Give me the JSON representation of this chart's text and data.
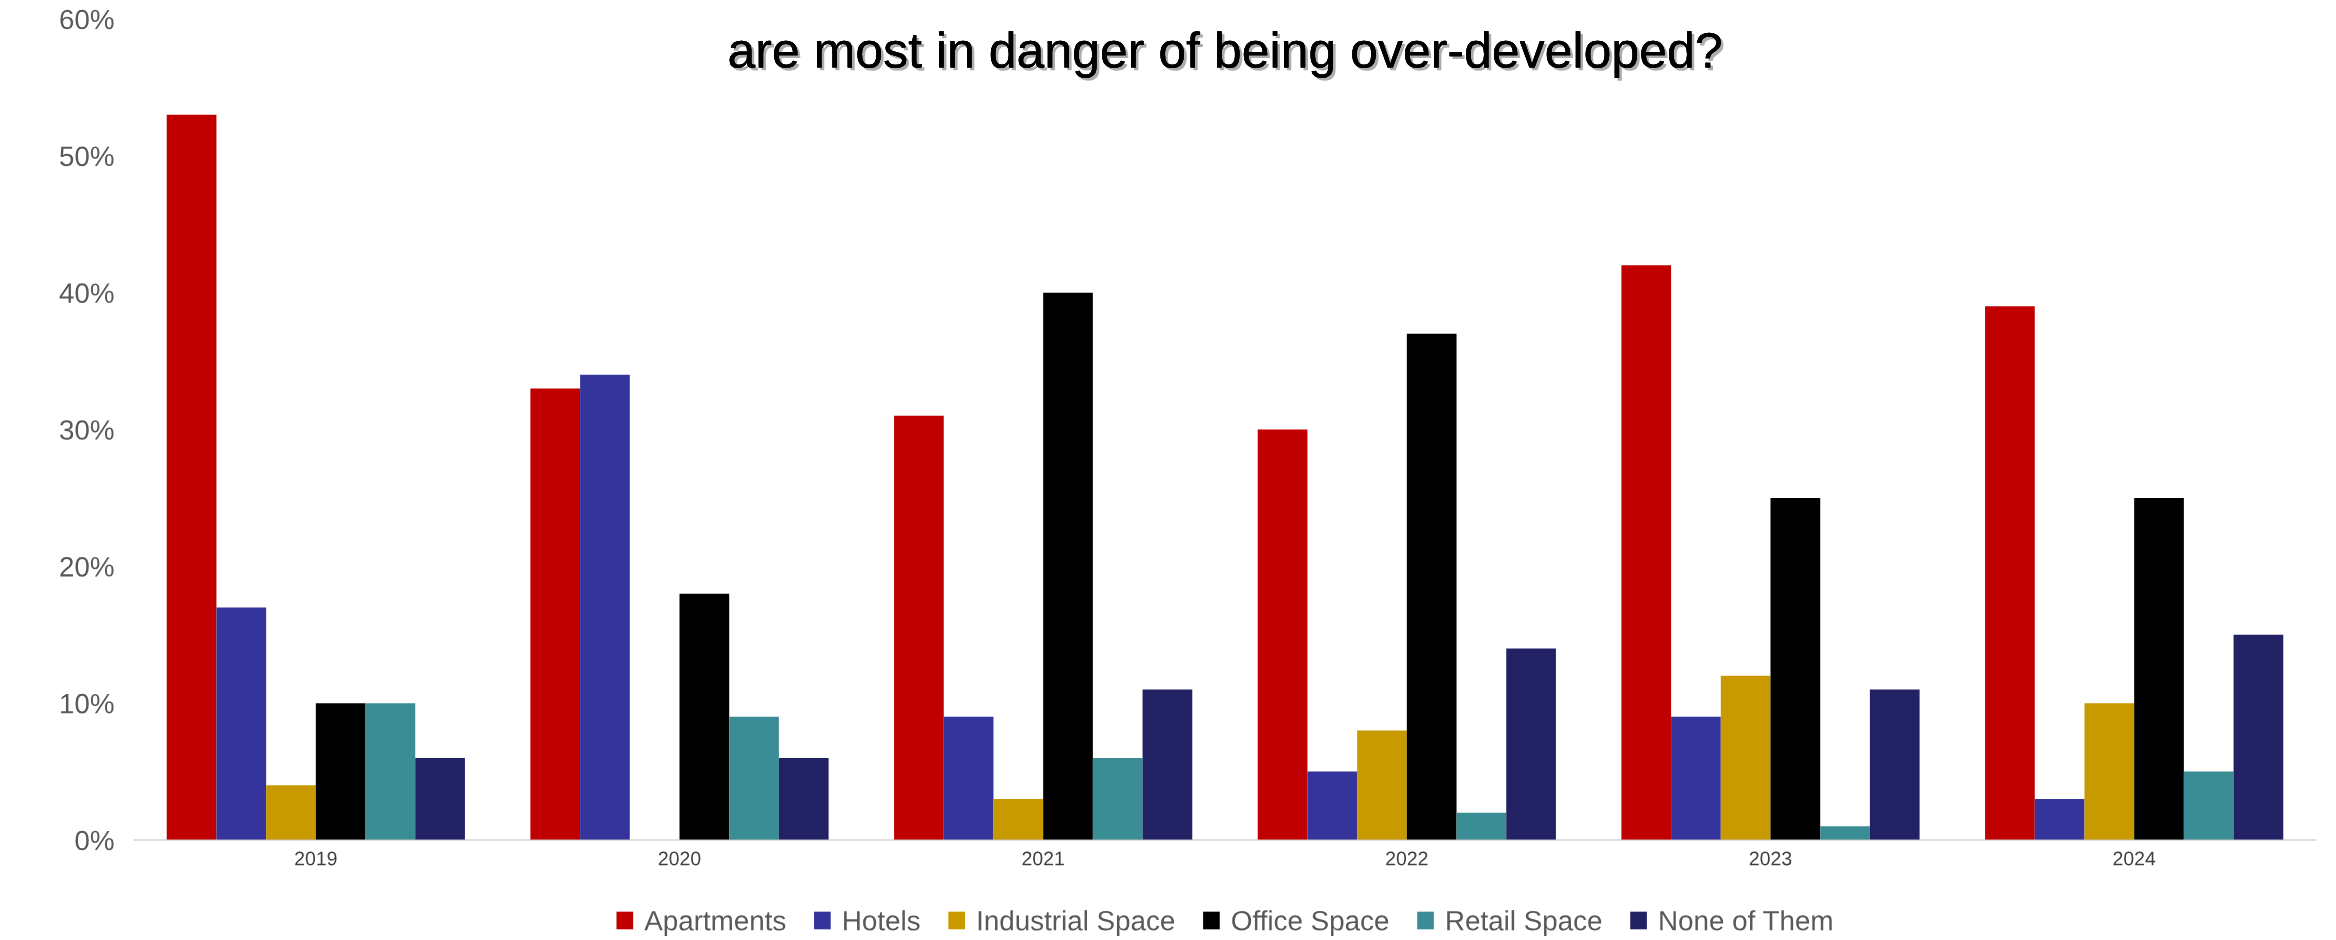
{
  "chart_data": {
    "type": "bar",
    "title": "are most in danger of being over-developed?",
    "categories": [
      "2019",
      "2020",
      "2021",
      "2022",
      "2023",
      "2024"
    ],
    "series": [
      {
        "name": "Apartments",
        "color": "#c00000",
        "values": [
          53,
          33,
          31,
          30,
          42,
          39
        ]
      },
      {
        "name": "Hotels",
        "color": "#35339c",
        "values": [
          17,
          34,
          9,
          5,
          9,
          3
        ]
      },
      {
        "name": "Industrial Space",
        "color": "#c99a00",
        "values": [
          4,
          null,
          3,
          8,
          12,
          10
        ]
      },
      {
        "name": "Office Space",
        "color": "#000000",
        "values": [
          10,
          18,
          40,
          37,
          25,
          25
        ]
      },
      {
        "name": "Retail Space",
        "color": "#3a8d94",
        "values": [
          10,
          9,
          6,
          2,
          1,
          5
        ]
      },
      {
        "name": "None of Them",
        "color": "#212164",
        "values": [
          6,
          6,
          11,
          14,
          11,
          15
        ]
      }
    ],
    "ylim": [
      0,
      60
    ],
    "yticks": [
      {
        "value": 0,
        "label": "0%"
      },
      {
        "value": 10,
        "label": "10%"
      },
      {
        "value": 20,
        "label": "20%"
      },
      {
        "value": 30,
        "label": "30%"
      },
      {
        "value": 40,
        "label": "40%"
      },
      {
        "value": 50,
        "label": "50%"
      },
      {
        "value": 60,
        "label": "60%"
      }
    ],
    "grid": false,
    "legend": "bottom"
  }
}
